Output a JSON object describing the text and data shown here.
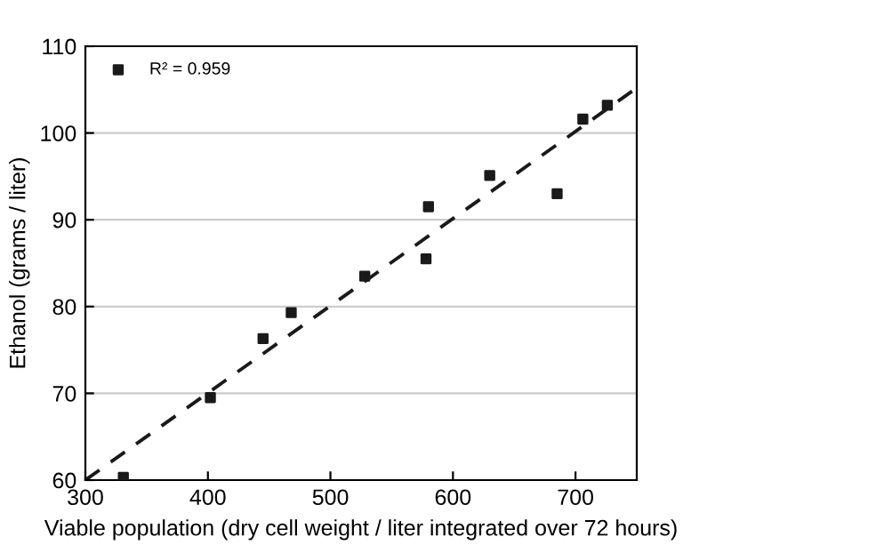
{
  "chart_data": {
    "type": "scatter",
    "xlabel": "Viable population (dry cell weight / liter integrated over 72 hours)",
    "ylabel": "Ethanol (grams / liter)",
    "xlim": [
      300,
      750
    ],
    "xticks": [
      300,
      400,
      500,
      600,
      700
    ],
    "ylim": [
      60,
      110
    ],
    "yticks": [
      60,
      70,
      80,
      90,
      100,
      110
    ],
    "grid": "y",
    "legend": "top left",
    "marker": "square",
    "series": [
      {
        "name": "R² = 0.959",
        "color": "#1a1a1a",
        "x": [
          331,
          402,
          445,
          468,
          528,
          578,
          580,
          630,
          685,
          706,
          726
        ],
        "values": [
          60.3,
          69.5,
          76.3,
          79.3,
          83.5,
          85.5,
          91.5,
          95.1,
          93,
          101.6,
          103.2
        ]
      },
      {
        "type": "line",
        "color": "#1a1a1a",
        "line_style": "dashed",
        "marker": "none",
        "x": [
          300,
          750
        ],
        "values": [
          60,
          105.2
        ]
      }
    ]
  }
}
